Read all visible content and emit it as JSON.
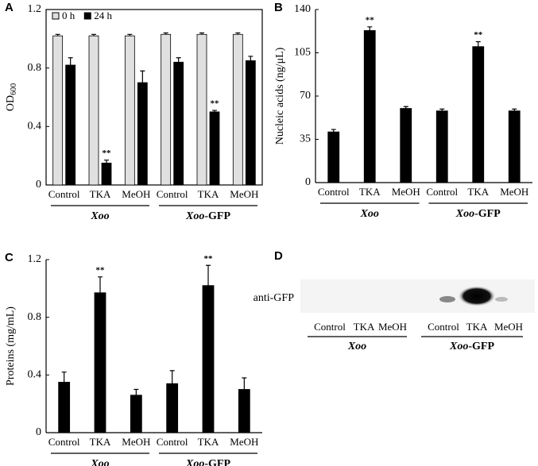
{
  "chart_data": [
    {
      "type": "bar",
      "panel": "A",
      "ylabel": "OD",
      "ylabel_subscript": "600",
      "categories": [
        "Control",
        "TKA",
        "MeOH",
        "Control",
        "TKA",
        "MeOH"
      ],
      "groups": [
        "Xoo",
        "Xoo-GFP"
      ],
      "series": [
        {
          "name": "0 h",
          "color": "#e0e0e0",
          "values": [
            1.02,
            1.02,
            1.02,
            1.03,
            1.03,
            1.03
          ],
          "errors": [
            0.01,
            0.01,
            0.01,
            0.01,
            0.01,
            0.01
          ]
        },
        {
          "name": "24 h",
          "color": "#000000",
          "values": [
            0.82,
            0.15,
            0.7,
            0.84,
            0.5,
            0.85
          ],
          "errors": [
            0.05,
            0.02,
            0.08,
            0.03,
            0.01,
            0.03
          ],
          "significance": [
            null,
            "**",
            null,
            null,
            "**",
            null
          ]
        }
      ],
      "ylim": [
        0,
        1.2
      ],
      "yticks": [
        0,
        0.4,
        0.8,
        1.2
      ],
      "legend": "upper-left",
      "box": true
    },
    {
      "type": "bar",
      "panel": "B",
      "ylabel": "Nucleic acids (ng/μL)",
      "categories": [
        "Control",
        "TKA",
        "MeOH",
        "Control",
        "TKA",
        "MeOH"
      ],
      "groups": [
        "Xoo",
        "Xoo-GFP"
      ],
      "series": [
        {
          "color": "#000000",
          "values": [
            41,
            123,
            60,
            58,
            110,
            58
          ],
          "errors": [
            2,
            3,
            1.5,
            1.5,
            4,
            1.5
          ],
          "significance": [
            null,
            "**",
            null,
            null,
            "**",
            null
          ]
        }
      ],
      "ylim": [
        0,
        140
      ],
      "yticks": [
        0,
        35,
        70,
        105,
        140
      ],
      "box": false
    },
    {
      "type": "bar",
      "panel": "C",
      "ylabel": "Proteins (mg/mL)",
      "categories": [
        "Control",
        "TKA",
        "MeOH",
        "Control",
        "TKA",
        "MeOH"
      ],
      "groups": [
        "Xoo",
        "Xoo-GFP"
      ],
      "series": [
        {
          "color": "#000000",
          "values": [
            0.35,
            0.97,
            0.26,
            0.34,
            1.02,
            0.3
          ],
          "errors": [
            0.07,
            0.11,
            0.04,
            0.09,
            0.14,
            0.08
          ],
          "significance": [
            null,
            "**",
            null,
            null,
            "**",
            null
          ]
        }
      ],
      "ylim": [
        0,
        1.2
      ],
      "yticks": [
        0,
        0.4,
        0.8,
        1.2
      ],
      "box": false
    }
  ],
  "blot": {
    "panel": "D",
    "antibody": "anti-GFP",
    "lanes": [
      "Control",
      "TKA",
      "MeOH",
      "Control",
      "TKA",
      "MeOH"
    ],
    "groups": [
      "Xoo",
      "Xoo-GFP"
    ]
  }
}
